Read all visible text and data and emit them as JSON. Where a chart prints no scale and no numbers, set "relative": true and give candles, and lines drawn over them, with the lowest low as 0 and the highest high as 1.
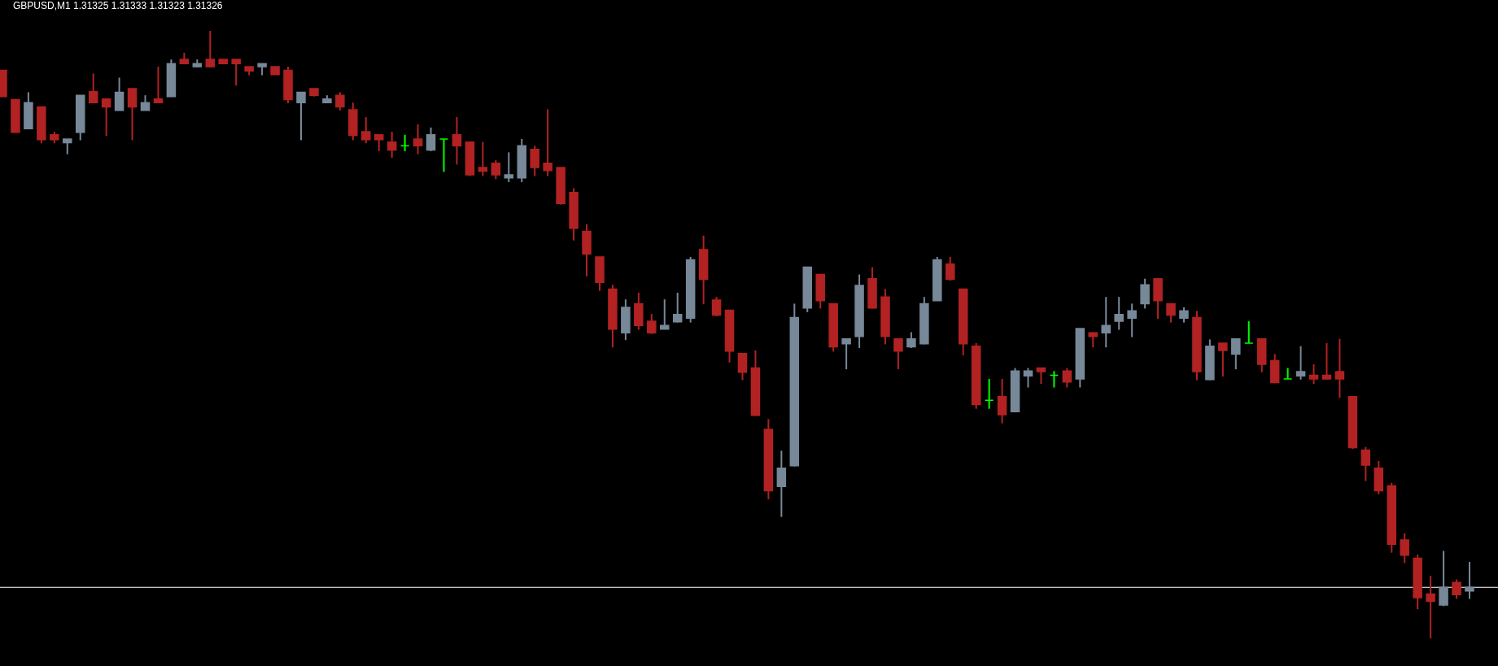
{
  "chart_data": {
    "type": "candlestick",
    "title": "GBPUSD,M1 1.31325 1.31333 1.31323 1.31326",
    "relative": true,
    "categories": [
      null,
      null,
      null,
      null,
      null,
      null,
      null,
      null,
      null,
      null,
      null,
      null,
      null,
      null,
      null,
      null,
      null,
      null,
      null,
      null,
      null,
      null,
      null,
      null,
      null,
      null,
      null,
      null,
      null,
      null,
      null,
      null,
      null,
      null,
      null,
      null,
      null,
      null,
      null,
      null,
      null,
      null,
      null,
      null,
      null,
      null,
      null,
      null,
      null,
      null,
      null,
      null,
      null,
      null,
      null,
      null,
      null,
      null,
      null,
      null,
      null,
      null,
      null,
      null,
      null,
      null,
      null,
      null,
      null,
      null,
      null,
      null,
      null,
      null,
      null,
      null,
      null,
      null,
      null,
      null,
      null,
      null,
      null,
      null,
      null,
      null,
      null,
      null,
      null,
      null,
      null,
      null,
      null,
      null,
      null,
      null,
      null,
      null,
      null,
      null,
      null,
      null,
      null,
      null,
      null,
      null,
      null,
      null,
      null,
      null,
      null,
      null,
      null,
      null
    ],
    "ohlc": [
      [
        0.935,
        0.935,
        0.892,
        0.892
      ],
      [
        0.887,
        0.888,
        0.833,
        0.833
      ],
      [
        0.839,
        0.899,
        0.839,
        0.882
      ],
      [
        0.875,
        0.875,
        0.815,
        0.821
      ],
      [
        0.829,
        0.834,
        0.815,
        0.821
      ],
      [
        0.816,
        0.822,
        0.797,
        0.822
      ],
      [
        0.833,
        0.894,
        0.82,
        0.894
      ],
      [
        0.9,
        0.93,
        0.881,
        0.882
      ],
      [
        0.888,
        0.888,
        0.827,
        0.875
      ],
      [
        0.869,
        0.923,
        0.869,
        0.899
      ],
      [
        0.905,
        0.905,
        0.82,
        0.875
      ],
      [
        0.869,
        0.894,
        0.869,
        0.882
      ],
      [
        0.888,
        0.941,
        0.881,
        0.882
      ],
      [
        0.892,
        0.953,
        0.892,
        0.946
      ],
      [
        0.953,
        0.964,
        0.945,
        0.946
      ],
      [
        0.941,
        0.953,
        0.94,
        0.946
      ],
      [
        0.953,
        1,
        0.94,
        0.941
      ],
      [
        0.953,
        0.953,
        0.945,
        0.946
      ],
      [
        0.953,
        0.953,
        0.91,
        0.946
      ],
      [
        0.941,
        0.941,
        0.927,
        0.934
      ],
      [
        0.941,
        0.946,
        0.927,
        0.946
      ],
      [
        0.941,
        0.941,
        0.928,
        0.928
      ],
      [
        0.935,
        0.941,
        0.881,
        0.887
      ],
      [
        0.882,
        0.899,
        0.82,
        0.899
      ],
      [
        0.905,
        0.905,
        0.892,
        0.894
      ],
      [
        0.882,
        0.894,
        0.881,
        0.888
      ],
      [
        0.894,
        0.899,
        0.869,
        0.875
      ],
      [
        0.87,
        0.882,
        0.82,
        0.828
      ],
      [
        0.834,
        0.858,
        0.815,
        0.821
      ],
      [
        0.829,
        0.829,
        0.802,
        0.821
      ],
      [
        0.817,
        0.834,
        0.791,
        0.804
      ],
      [
        0.811,
        0.829,
        0.802,
        0.811
      ],
      [
        0.822,
        0.846,
        0.797,
        0.811
      ],
      [
        0.804,
        0.841,
        0.802,
        0.829
      ],
      [
        0.822,
        0.822,
        0.768,
        0.822
      ],
      [
        0.829,
        0.858,
        0.78,
        0.811
      ],
      [
        0.817,
        0.817,
        0.761,
        0.763
      ],
      [
        0.775,
        0.817,
        0.761,
        0.769
      ],
      [
        0.782,
        0.787,
        0.756,
        0.763
      ],
      [
        0.758,
        0.8,
        0.751,
        0.763
      ],
      [
        0.758,
        0.822,
        0.751,
        0.811
      ],
      [
        0.805,
        0.811,
        0.761,
        0.775
      ],
      [
        0.782,
        0.871,
        0.761,
        0.77
      ],
      [
        0.775,
        0.775,
        0.714,
        0.716
      ],
      [
        0.734,
        0.741,
        0.655,
        0.675
      ],
      [
        0.67,
        0.682,
        0.596,
        0.633
      ],
      [
        0.628,
        0.628,
        0.572,
        0.586
      ],
      [
        0.575,
        0.582,
        0.479,
        0.509
      ],
      [
        0.503,
        0.558,
        0.491,
        0.545
      ],
      [
        0.551,
        0.569,
        0.508,
        0.515
      ],
      [
        0.522,
        0.534,
        0.501,
        0.503
      ],
      [
        0.509,
        0.558,
        0.509,
        0.515
      ],
      [
        0.521,
        0.569,
        0.52,
        0.533
      ],
      [
        0.527,
        0.628,
        0.52,
        0.623
      ],
      [
        0.64,
        0.663,
        0.55,
        0.591
      ],
      [
        0.557,
        0.562,
        0.53,
        0.532
      ],
      [
        0.54,
        0.54,
        0.454,
        0.473
      ],
      [
        0.469,
        0.469,
        0.425,
        0.438
      ],
      [
        0.445,
        0.474,
        0.366,
        0.367
      ],
      [
        0.344,
        0.361,
        0.229,
        0.243
      ],
      [
        0.25,
        0.309,
        0.2,
        0.28
      ],
      [
        0.284,
        0.551,
        0.283,
        0.528
      ],
      [
        0.544,
        0.611,
        0.537,
        0.611
      ],
      [
        0.599,
        0.599,
        0.543,
        0.556
      ],
      [
        0.551,
        0.551,
        0.472,
        0.48
      ],
      [
        0.485,
        0.493,
        0.443,
        0.493
      ],
      [
        0.497,
        0.599,
        0.478,
        0.581
      ],
      [
        0.592,
        0.611,
        0.543,
        0.544
      ],
      [
        0.562,
        0.575,
        0.484,
        0.497
      ],
      [
        0.493,
        0.493,
        0.443,
        0.473
      ],
      [
        0.48,
        0.504,
        0.478,
        0.493
      ],
      [
        0.485,
        0.562,
        0.484,
        0.551
      ],
      [
        0.556,
        0.628,
        0.556,
        0.623
      ],
      [
        0.616,
        0.628,
        0.589,
        0.591
      ],
      [
        0.575,
        0.575,
        0.466,
        0.485
      ],
      [
        0.481,
        0.486,
        0.378,
        0.385
      ],
      [
        0.392,
        0.427,
        0.378,
        0.392
      ],
      [
        0.398,
        0.427,
        0.354,
        0.368
      ],
      [
        0.373,
        0.445,
        0.372,
        0.44
      ],
      [
        0.432,
        0.445,
        0.413,
        0.44
      ],
      [
        0.445,
        0.445,
        0.419,
        0.439
      ],
      [
        0.433,
        0.44,
        0.413,
        0.433
      ],
      [
        0.44,
        0.445,
        0.413,
        0.422
      ],
      [
        0.427,
        0.51,
        0.413,
        0.51
      ],
      [
        0.503,
        0.503,
        0.479,
        0.497
      ],
      [
        0.503,
        0.562,
        0.479,
        0.515
      ],
      [
        0.522,
        0.562,
        0.508,
        0.533
      ],
      [
        0.527,
        0.551,
        0.496,
        0.539
      ],
      [
        0.551,
        0.592,
        0.543,
        0.582
      ],
      [
        0.592,
        0.592,
        0.526,
        0.556
      ],
      [
        0.551,
        0.551,
        0.52,
        0.532
      ],
      [
        0.527,
        0.545,
        0.52,
        0.539
      ],
      [
        0.528,
        0.539,
        0.425,
        0.439
      ],
      [
        0.426,
        0.492,
        0.425,
        0.481
      ],
      [
        0.486,
        0.486,
        0.431,
        0.474
      ],
      [
        0.468,
        0.493,
        0.443,
        0.493
      ],
      [
        0.486,
        0.522,
        0.486,
        0.486
      ],
      [
        0.493,
        0.493,
        0.438,
        0.451
      ],
      [
        0.457,
        0.468,
        0.42,
        0.421
      ],
      [
        0.427,
        0.445,
        0.427,
        0.427
      ],
      [
        0.432,
        0.481,
        0.426,
        0.439
      ],
      [
        0.433,
        0.451,
        0.419,
        0.427
      ],
      [
        0.433,
        0.486,
        0.426,
        0.427
      ],
      [
        0.439,
        0.493,
        0.396,
        0.427
      ],
      [
        0.398,
        0.398,
        0.312,
        0.314
      ],
      [
        0.31,
        0.315,
        0.259,
        0.285
      ],
      [
        0.28,
        0.292,
        0.237,
        0.243
      ],
      [
        0.251,
        0.256,
        0.141,
        0.155
      ],
      [
        0.162,
        0.173,
        0.124,
        0.137
      ],
      [
        0.132,
        0.138,
        0.048,
        0.067
      ],
      [
        0.073,
        0.103,
        0,
        0.061
      ],
      [
        0.055,
        0.144,
        0.053,
        0.084
      ],
      [
        0.092,
        0.097,
        0.065,
        0.072
      ],
      [
        0.078,
        0.126,
        0.065,
        0.084
      ]
    ],
    "colors": [
      "#b22222",
      "#b22222",
      "#778899",
      "#b22222",
      "#b22222",
      "#778899",
      "#778899",
      "#b22222",
      "#b22222",
      "#778899",
      "#b22222",
      "#778899",
      "#b22222",
      "#778899",
      "#b22222",
      "#778899",
      "#b22222",
      "#b22222",
      "#b22222",
      "#b22222",
      "#778899",
      "#b22222",
      "#b22222",
      "#778899",
      "#b22222",
      "#778899",
      "#b22222",
      "#b22222",
      "#b22222",
      "#b22222",
      "#b22222",
      "#00ff00",
      "#b22222",
      "#778899",
      "#00ff00",
      "#b22222",
      "#b22222",
      "#b22222",
      "#b22222",
      "#778899",
      "#778899",
      "#b22222",
      "#b22222",
      "#b22222",
      "#b22222",
      "#b22222",
      "#b22222",
      "#b22222",
      "#778899",
      "#b22222",
      "#b22222",
      "#778899",
      "#778899",
      "#778899",
      "#b22222",
      "#b22222",
      "#b22222",
      "#b22222",
      "#b22222",
      "#b22222",
      "#778899",
      "#778899",
      "#778899",
      "#b22222",
      "#b22222",
      "#778899",
      "#778899",
      "#b22222",
      "#b22222",
      "#b22222",
      "#778899",
      "#778899",
      "#778899",
      "#b22222",
      "#b22222",
      "#b22222",
      "#00ff00",
      "#b22222",
      "#778899",
      "#778899",
      "#b22222",
      "#00ff00",
      "#b22222",
      "#778899",
      "#b22222",
      "#778899",
      "#778899",
      "#778899",
      "#778899",
      "#b22222",
      "#b22222",
      "#778899",
      "#b22222",
      "#778899",
      "#b22222",
      "#778899",
      "#00ff00",
      "#b22222",
      "#b22222",
      "#00ff00",
      "#778899",
      "#b22222",
      "#b22222",
      "#b22222",
      "#b22222",
      "#b22222",
      "#b22222",
      "#b22222",
      "#b22222",
      "#b22222",
      "#b22222",
      "#778899",
      "#b22222",
      "#778899"
    ],
    "ref_lines": [
      {
        "axis": "y",
        "value": 0.084,
        "color": "#ffffff"
      }
    ]
  }
}
